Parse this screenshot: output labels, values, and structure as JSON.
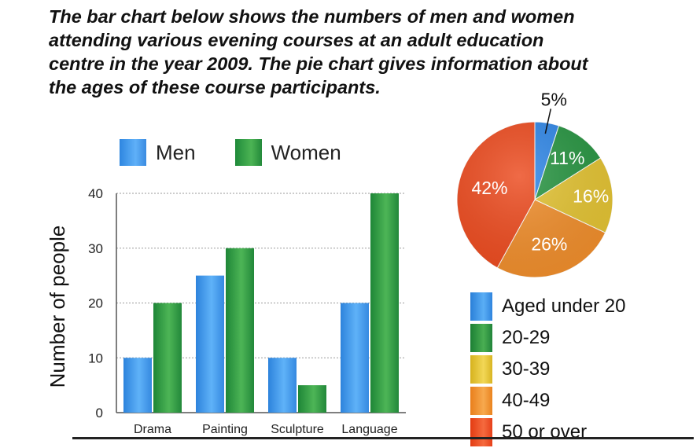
{
  "heading": {
    "line1": "The bar chart below shows the numbers of men and women",
    "line2": "attending various evening courses at an adult education",
    "line3": "centre in the year 2009. The pie chart gives information about",
    "line4": "the ages of these course participants."
  },
  "colors": {
    "men": "#3d94ea",
    "women": "#33a146",
    "under20": "#2f86e6",
    "a20_29": "#279441",
    "a30_39": "#e2c232",
    "a40_49": "#ef8d2b",
    "a50_over": "#ec4a1e"
  },
  "chart_data": [
    {
      "type": "bar",
      "categories": [
        "Drama",
        "Painting",
        "Sculpture",
        "Language"
      ],
      "series": [
        {
          "name": "Men",
          "values": [
            10,
            25,
            10,
            20
          ]
        },
        {
          "name": "Women",
          "values": [
            20,
            30,
            5,
            40
          ]
        }
      ],
      "title": "",
      "xlabel": "",
      "ylabel": "Number of people",
      "ylim": [
        0,
        40
      ],
      "yticks": [
        0,
        10,
        20,
        30,
        40
      ],
      "grid": true,
      "legend": "top"
    },
    {
      "type": "pie",
      "labels": [
        "Aged under 20",
        "20-29",
        "30-39",
        "40-49",
        "50 or over"
      ],
      "values": [
        5,
        11,
        16,
        26,
        42
      ],
      "value_labels": [
        "5%",
        "11%",
        "16%",
        "26%",
        "42%"
      ],
      "legend": "bottom"
    }
  ]
}
